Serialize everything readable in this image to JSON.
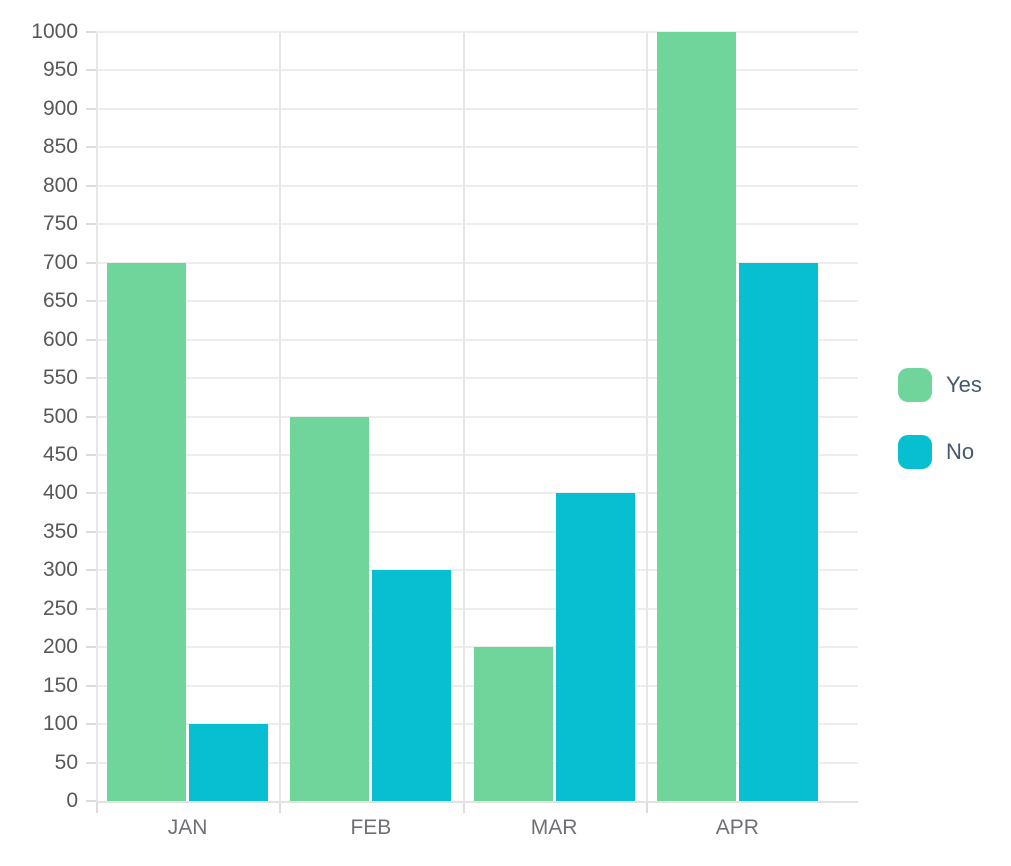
{
  "chart_data": {
    "type": "bar",
    "title": "",
    "categories": [
      "JAN",
      "FEB",
      "MAR",
      "APR"
    ],
    "series": [
      {
        "name": "Yes",
        "color": "#6fd59b",
        "values": [
          700,
          500,
          200,
          1000
        ]
      },
      {
        "name": "No",
        "color": "#08bfd1",
        "values": [
          100,
          300,
          400,
          700
        ]
      }
    ],
    "xlabel": "",
    "ylabel": "",
    "ylim": [
      0,
      1000
    ],
    "ytick_step": 50,
    "grid": true,
    "legend_position": "right",
    "colors": {
      "background": "#ffffff",
      "gridline": "#ededed",
      "vertical_gridline": "#e7e7e7",
      "tick": "#dcdcdc",
      "axis_line": "#e2e2e2",
      "y_tick_label": "#58585b",
      "x_tick_label": "#707074",
      "legend_label": "#44596e"
    }
  }
}
